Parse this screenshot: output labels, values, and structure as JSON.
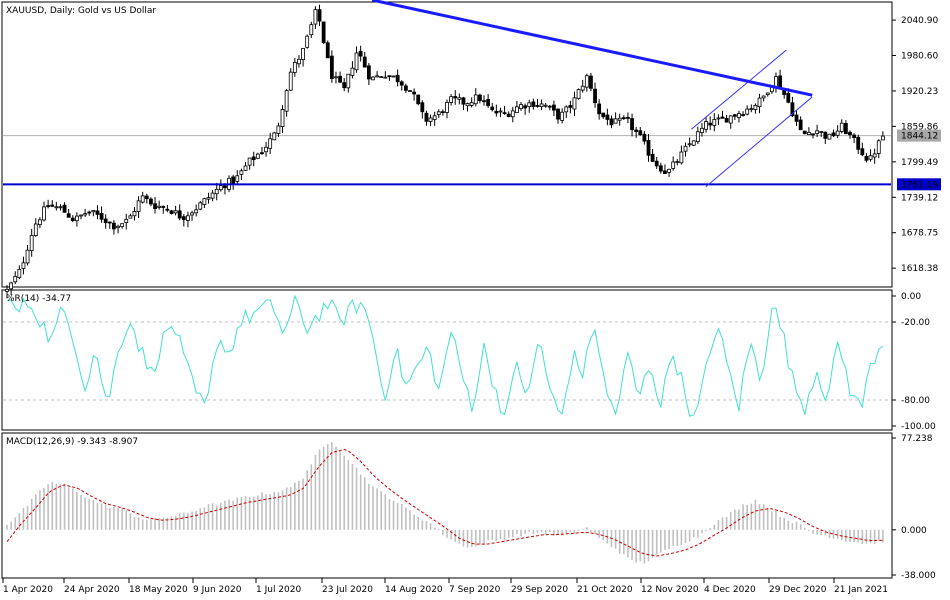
{
  "chart_data": [
    {
      "type": "candlestick",
      "pane": "price",
      "title": "XAUUSD, Daily:  Gold vs US Dollar",
      "yticks": [
        2040.9,
        1980.6,
        1920.23,
        1859.86,
        1799.49,
        1739.12,
        1678.75,
        1618.38
      ],
      "ytick_labels": [
        "2040.90",
        "1980.60",
        "1920.23",
        "1859.86",
        "1799.49",
        "1739.12",
        "1678.75",
        "1618.38"
      ],
      "ylim": [
        1588,
        2070
      ],
      "current_price": 1844.12,
      "current_price_label": "1844.12",
      "support_level": 1761.19,
      "support_label": "1761.19",
      "downtrend_line": {
        "from": [
          "2020-08-06",
          2075
        ],
        "to": [
          "2021-01-06",
          1913
        ]
      },
      "channel_lower": {
        "from": [
          "2020-11-30",
          1757
        ],
        "to": [
          "2021-01-06",
          1910
        ]
      },
      "channel_upper": {
        "from": [
          "2020-11-25",
          1855
        ],
        "to": [
          "2020-12-28",
          1990
        ]
      },
      "closes_weekly": [
        1580,
        1615,
        1690,
        1725,
        1720,
        1700,
        1715,
        1705,
        1690,
        1700,
        1740,
        1725,
        1720,
        1705,
        1720,
        1740,
        1760,
        1770,
        1800,
        1820,
        1850,
        1950,
        1990,
        2060,
        1950,
        1920,
        1990,
        1940,
        1950,
        1940,
        1920,
        1870,
        1880,
        1905,
        1900,
        1910,
        1885,
        1880,
        1895,
        1900,
        1895,
        1875,
        1900,
        1945,
        1880,
        1865,
        1870,
        1840,
        1800,
        1780,
        1810,
        1840,
        1865,
        1870,
        1880,
        1890,
        1905,
        1945,
        1900,
        1845,
        1855,
        1840,
        1860,
        1830,
        1800,
        1844
      ]
    },
    {
      "type": "line",
      "pane": "williams_r",
      "title": "%R(14) -34.77",
      "yticks": [
        0.0,
        -20.0,
        -80.0,
        -100.0
      ],
      "ytick_labels": [
        "0.00",
        "-20.00",
        "-80.00",
        "-100.00"
      ],
      "ylim": [
        -100,
        0
      ],
      "values": [
        -5,
        -12,
        -4,
        -18,
        -35,
        -10,
        -30,
        -70,
        -40,
        -85,
        -45,
        -15,
        -40,
        -60,
        -35,
        -20,
        -50,
        -75,
        -88,
        -30,
        -45,
        -20,
        -15,
        -10,
        -8,
        -30,
        -5,
        -25,
        -15,
        -5,
        -20,
        -10,
        -5,
        -30,
        -80,
        -40,
        -70,
        -55,
        -40,
        -75,
        -25,
        -60,
        -85,
        -40,
        -70,
        -95,
        -50,
        -80,
        -30,
        -75,
        -95,
        -45,
        -60,
        -20,
        -75,
        -90,
        -45,
        -80,
        -50,
        -85,
        -40,
        -70,
        -98,
        -60,
        -20,
        -55,
        -85,
        -35,
        -65,
        -5,
        -30,
        -70,
        -85,
        -55,
        -80,
        -35,
        -70,
        -88,
        -50,
        -34.77
      ]
    },
    {
      "type": "bar+line",
      "pane": "macd",
      "title": "MACD(12,26,9) -9.343 -8.907",
      "yticks": [
        77.238,
        0.0,
        -38.0
      ],
      "ytick_labels": [
        "77.238",
        "0.000",
        "-38.000"
      ],
      "ylim": [
        -38,
        77.238
      ],
      "histogram_weekly": [
        5,
        15,
        28,
        40,
        38,
        32,
        25,
        20,
        18,
        12,
        8,
        10,
        12,
        15,
        20,
        22,
        25,
        28,
        30,
        32,
        35,
        45,
        65,
        75,
        62,
        48,
        35,
        28,
        20,
        12,
        5,
        -5,
        -12,
        -15,
        -10,
        -8,
        -5,
        -3,
        -2,
        -5,
        -3,
        2,
        -8,
        -15,
        -25,
        -28,
        -22,
        -15,
        -10,
        -5,
        5,
        12,
        20,
        25,
        18,
        10,
        5,
        -3,
        -5,
        -8,
        -10,
        -12,
        -9.343
      ],
      "signal_weekly": [
        -10,
        5,
        18,
        32,
        38,
        35,
        28,
        22,
        19,
        15,
        10,
        8,
        9,
        11,
        14,
        17,
        20,
        23,
        25,
        27,
        29,
        35,
        52,
        65,
        68,
        58,
        45,
        35,
        26,
        18,
        10,
        2,
        -7,
        -12,
        -12,
        -10,
        -8,
        -6,
        -4,
        -4,
        -3,
        -2,
        -4,
        -8,
        -14,
        -20,
        -22,
        -20,
        -17,
        -12,
        -5,
        2,
        10,
        16,
        18,
        15,
        10,
        3,
        -2,
        -5,
        -7,
        -9,
        -8.907
      ]
    }
  ],
  "x_axis": {
    "labels": [
      "1 Apr 2020",
      "24 Apr 2020",
      "18 May 2020",
      "9 Jun 2020",
      "1 Jul 2020",
      "23 Jul 2020",
      "14 Aug 2020",
      "7 Sep 2020",
      "29 Sep 2020",
      "21 Oct 2020",
      "12 Nov 2020",
      "4 Dec 2020",
      "29 Dec 2020",
      "21 Jan 2021"
    ]
  },
  "colors": {
    "candle_body_up": "#ffffff",
    "candle_body_down": "#000000",
    "candle_wick": "#000000",
    "support_line": "#0000cc",
    "trend_line": "#1a1aff",
    "channel_line": "#3333ff",
    "wpr_line": "#40e0d0",
    "macd_histogram": "#c0c0c0",
    "macd_signal": "#cc0000",
    "grid_dashed": "#c0c0c0",
    "price_label_bg": "#a8a8a8"
  }
}
